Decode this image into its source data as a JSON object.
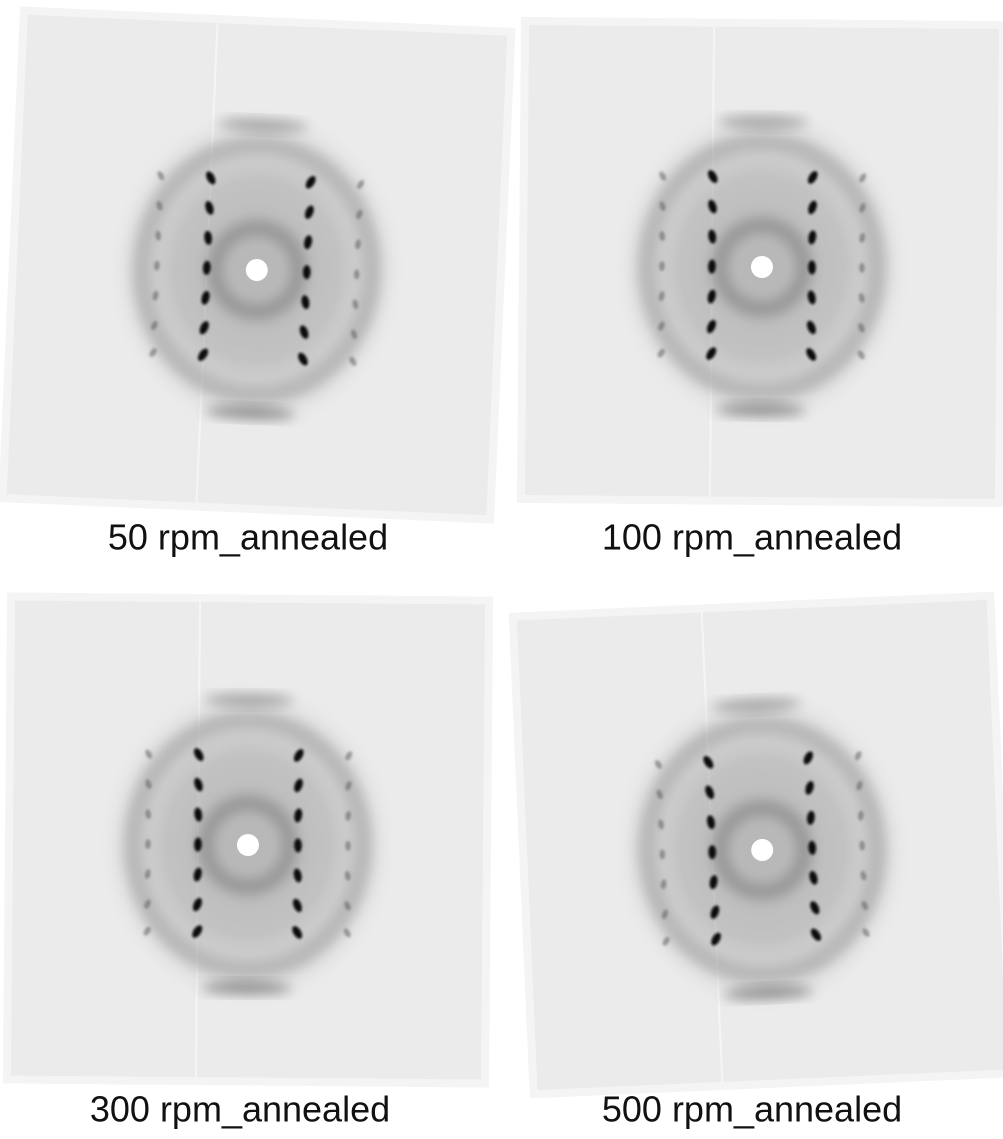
{
  "panels": [
    {
      "label": "50 rpm_annealed"
    },
    {
      "label": "100 rpm_annealed"
    },
    {
      "label": "300 rpm_annealed"
    },
    {
      "label": "500 rpm_annealed"
    }
  ]
}
